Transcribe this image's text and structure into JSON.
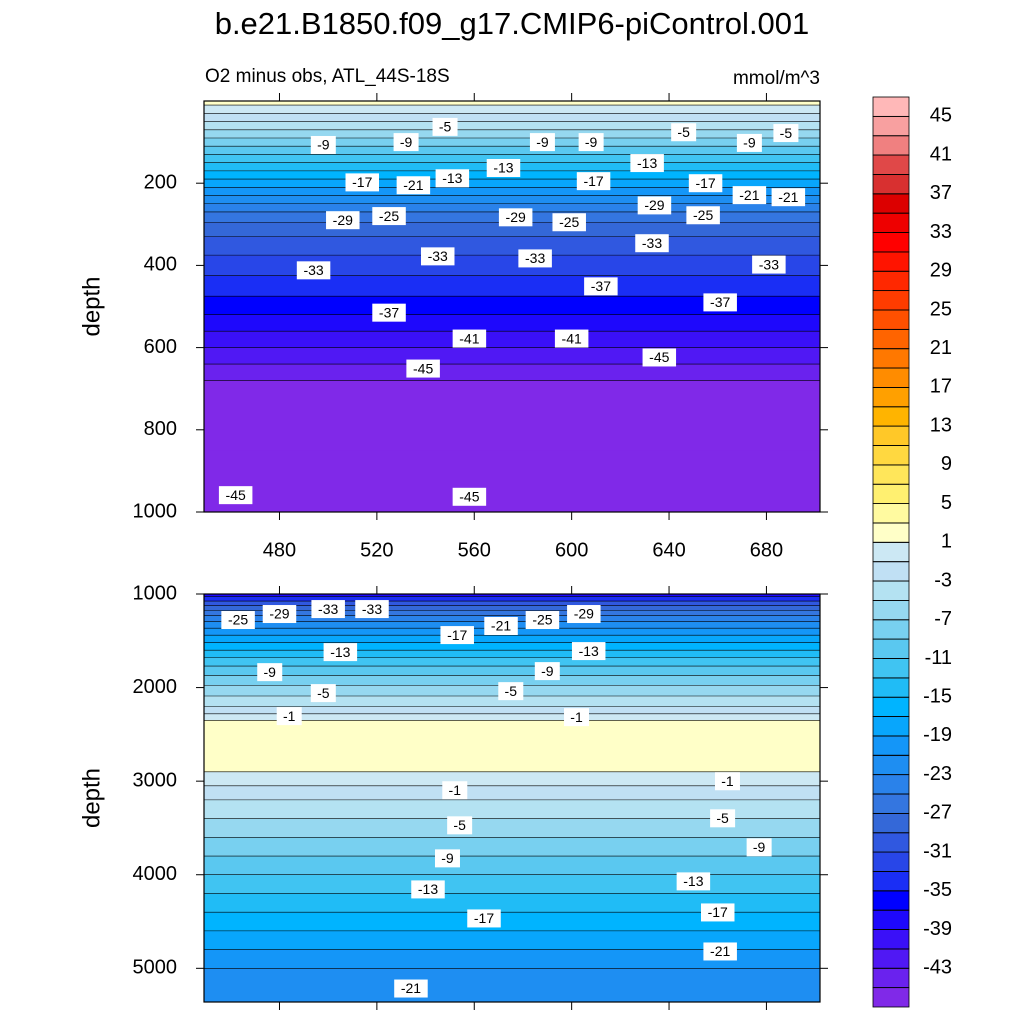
{
  "title": "b.e21.B1850.f09_g17.CMIP6-piControl.001",
  "colorbar": {
    "levels": [
      -45,
      -43,
      -41,
      -39,
      -37,
      -35,
      -33,
      -31,
      -29,
      -27,
      -25,
      -23,
      -21,
      -19,
      -17,
      -15,
      -13,
      -11,
      -9,
      -7,
      -5,
      -3,
      -1,
      1,
      3,
      5,
      7,
      9,
      11,
      13,
      15,
      17,
      19,
      21,
      23,
      25,
      27,
      29,
      31,
      33,
      35,
      37,
      39,
      41,
      43,
      45
    ],
    "ticks": [
      45,
      41,
      37,
      33,
      29,
      25,
      21,
      17,
      13,
      9,
      5,
      1,
      -3,
      -7,
      -11,
      -15,
      -19,
      -23,
      -27,
      -31,
      -35,
      -39,
      -43
    ],
    "colors": [
      "#8029e8",
      "#6a22ee",
      "#5018f4",
      "#3a10f8",
      "#1e08fc",
      "#0000ff",
      "#1a2ef5",
      "#2846e8",
      "#3058e0",
      "#3468d8",
      "#3476e0",
      "#2a82ea",
      "#1e8ef2",
      "#1496f8",
      "#08a6fc",
      "#00b4ff",
      "#20bcf6",
      "#40c4f2",
      "#5ac8f0",
      "#78d0f0",
      "#96d8f0",
      "#b4e2f2",
      "#c0e0f4",
      "#cce8f4",
      "#ffffc8",
      "#fffaa0",
      "#fff070",
      "#ffe65a",
      "#ffd840",
      "#ffc828",
      "#ffb400",
      "#ffa000",
      "#ff8c00",
      "#ff7800",
      "#ff6400",
      "#ff5000",
      "#ff3c00",
      "#ff2800",
      "#ff1400",
      "#ff0000",
      "#ee0000",
      "#dc0000",
      "#d83030",
      "#e04848",
      "#f08080",
      "#f8a0a0",
      "#ffb8b8"
    ]
  },
  "chart_data": [
    {
      "type": "contour",
      "subtitle": "O2 minus obs, ATL_44S-18S",
      "units": "mmol/m^3",
      "ylabel": "depth",
      "xlim": [
        449,
        702
      ],
      "xticks": [
        480,
        520,
        560,
        600,
        640,
        680
      ],
      "ylim": [
        0,
        1000
      ],
      "yticks": [
        200,
        400,
        600,
        800,
        1000
      ],
      "y_inverted": true,
      "profile": {
        "depth": [
          0,
          20,
          40,
          60,
          80,
          100,
          120,
          140,
          160,
          180,
          200,
          220,
          240,
          260,
          280,
          310,
          350,
          400,
          450,
          500,
          540,
          580,
          620,
          660,
          700,
          1000
        ],
        "values": [
          1,
          -1,
          -3,
          -5,
          -7,
          -9,
          -11,
          -13,
          -15,
          -17,
          -19,
          -21,
          -23,
          -25,
          -27,
          -29,
          -31,
          -33,
          -35,
          -37,
          -39,
          -41,
          -43,
          -45,
          -46,
          -46
        ]
      },
      "contour_labels": [
        {
          "x": 498,
          "depth": 107,
          "value": -9
        },
        {
          "x": 532,
          "depth": 100,
          "value": -9
        },
        {
          "x": 548,
          "depth": 63,
          "value": -5
        },
        {
          "x": 588,
          "depth": 100,
          "value": -9
        },
        {
          "x": 608,
          "depth": 100,
          "value": -9
        },
        {
          "x": 646,
          "depth": 76,
          "value": -5
        },
        {
          "x": 673,
          "depth": 102,
          "value": -9
        },
        {
          "x": 688,
          "depth": 78,
          "value": -5
        },
        {
          "x": 514,
          "depth": 198,
          "value": -17
        },
        {
          "x": 535,
          "depth": 205,
          "value": -21
        },
        {
          "x": 551,
          "depth": 188,
          "value": -13
        },
        {
          "x": 572,
          "depth": 163,
          "value": -13
        },
        {
          "x": 609,
          "depth": 195,
          "value": -17
        },
        {
          "x": 631,
          "depth": 151,
          "value": -13
        },
        {
          "x": 655,
          "depth": 200,
          "value": -17
        },
        {
          "x": 673,
          "depth": 229,
          "value": -21
        },
        {
          "x": 689,
          "depth": 234,
          "value": -21
        },
        {
          "x": 506,
          "depth": 290,
          "value": -29
        },
        {
          "x": 525,
          "depth": 280,
          "value": -25
        },
        {
          "x": 577,
          "depth": 283,
          "value": -29
        },
        {
          "x": 599,
          "depth": 295,
          "value": -25
        },
        {
          "x": 634,
          "depth": 254,
          "value": -29
        },
        {
          "x": 654,
          "depth": 278,
          "value": -25
        },
        {
          "x": 633,
          "depth": 346,
          "value": -33
        },
        {
          "x": 494,
          "depth": 412,
          "value": -33
        },
        {
          "x": 545,
          "depth": 378,
          "value": -33
        },
        {
          "x": 585,
          "depth": 383,
          "value": -33
        },
        {
          "x": 612,
          "depth": 451,
          "value": -37
        },
        {
          "x": 681,
          "depth": 398,
          "value": -33
        },
        {
          "x": 525,
          "depth": 515,
          "value": -37
        },
        {
          "x": 661,
          "depth": 490,
          "value": -37
        },
        {
          "x": 558,
          "depth": 578,
          "value": -41
        },
        {
          "x": 600,
          "depth": 578,
          "value": -41
        },
        {
          "x": 539,
          "depth": 651,
          "value": -45
        },
        {
          "x": 636,
          "depth": 624,
          "value": -45
        },
        {
          "x": 462,
          "depth": 959,
          "value": -45
        },
        {
          "x": 558,
          "depth": 963,
          "value": -45
        }
      ]
    },
    {
      "type": "contour",
      "ylabel": "depth",
      "xlim": [
        449,
        702
      ],
      "xticks": [
        480,
        520,
        560,
        600,
        640,
        680
      ],
      "ylim": [
        1000,
        5360
      ],
      "yticks": [
        1000,
        2000,
        3000,
        4000,
        5000
      ],
      "y_inverted": true,
      "profile": {
        "depth": [
          1000,
          1050,
          1100,
          1150,
          1200,
          1260,
          1330,
          1400,
          1480,
          1560,
          1640,
          1720,
          1820,
          1920,
          2030,
          2150,
          2260,
          2300,
          2400,
          2600,
          2800,
          3000,
          3100,
          3300,
          3500,
          3700,
          3900,
          4100,
          4300,
          4500,
          4700,
          4900,
          5100,
          5300
        ],
        "values": [
          -39,
          -35,
          -31,
          -29,
          -27,
          -25,
          -23,
          -21,
          -19,
          -17,
          -15,
          -13,
          -11,
          -9,
          -7,
          -5,
          -3,
          0,
          2,
          2,
          2,
          0,
          -2,
          -4,
          -6,
          -8,
          -10,
          -12,
          -14,
          -16,
          -18,
          -20,
          -22,
          -22
        ]
      },
      "contour_labels": [
        {
          "x": 463,
          "depth": 1278,
          "value": -25
        },
        {
          "x": 480,
          "depth": 1214,
          "value": -29
        },
        {
          "x": 500,
          "depth": 1161,
          "value": -33
        },
        {
          "x": 518,
          "depth": 1161,
          "value": -33
        },
        {
          "x": 505,
          "depth": 1621,
          "value": -13
        },
        {
          "x": 553,
          "depth": 1439,
          "value": -17
        },
        {
          "x": 571,
          "depth": 1342,
          "value": -21
        },
        {
          "x": 588,
          "depth": 1278,
          "value": -25
        },
        {
          "x": 605,
          "depth": 1214,
          "value": -29
        },
        {
          "x": 607,
          "depth": 1610,
          "value": -13
        },
        {
          "x": 476,
          "depth": 1835,
          "value": -9
        },
        {
          "x": 590,
          "depth": 1824,
          "value": -9
        },
        {
          "x": 498,
          "depth": 2059,
          "value": -5
        },
        {
          "x": 575,
          "depth": 2038,
          "value": -5
        },
        {
          "x": 484,
          "depth": 2305,
          "value": -1
        },
        {
          "x": 602,
          "depth": 2316,
          "value": -1
        },
        {
          "x": 552,
          "depth": 3097,
          "value": -1
        },
        {
          "x": 664,
          "depth": 3001,
          "value": -1
        },
        {
          "x": 554,
          "depth": 3472,
          "value": -5
        },
        {
          "x": 662,
          "depth": 3397,
          "value": -5
        },
        {
          "x": 549,
          "depth": 3825,
          "value": -9
        },
        {
          "x": 677,
          "depth": 3707,
          "value": -9
        },
        {
          "x": 541,
          "depth": 4157,
          "value": -13
        },
        {
          "x": 650,
          "depth": 4071,
          "value": -13
        },
        {
          "x": 564,
          "depth": 4467,
          "value": -17
        },
        {
          "x": 660,
          "depth": 4403,
          "value": -17
        },
        {
          "x": 661,
          "depth": 4820,
          "value": -21
        },
        {
          "x": 534,
          "depth": 5216,
          "value": -21
        }
      ]
    }
  ]
}
